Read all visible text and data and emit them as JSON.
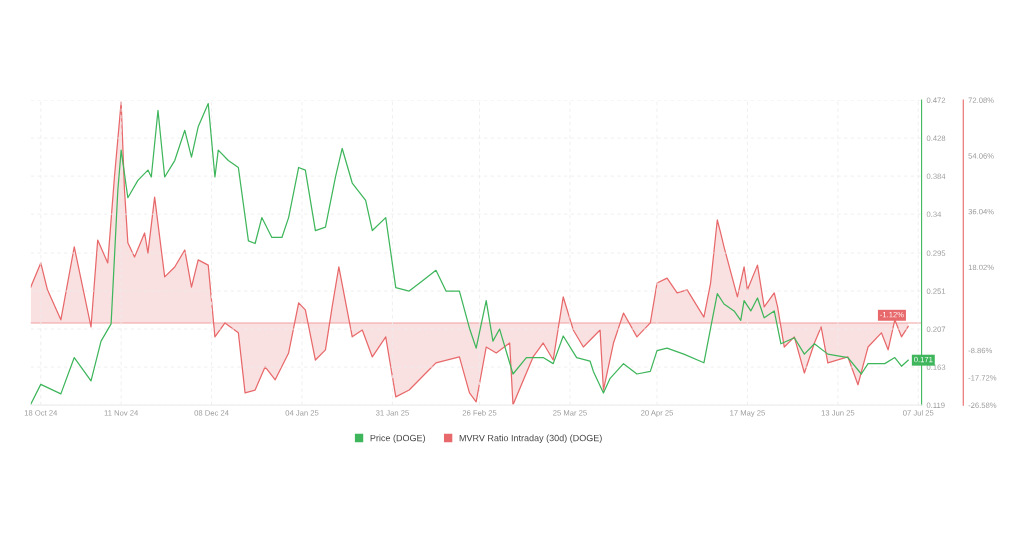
{
  "chart_data": {
    "type": "line",
    "xlim": [
      "2024-10-15",
      "2025-07-08"
    ],
    "xticks": [
      {
        "value": "2024-10-18",
        "label": "18 Oct 24"
      },
      {
        "value": "2024-11-11",
        "label": "11 Nov 24"
      },
      {
        "value": "2024-12-08",
        "label": "08 Dec 24"
      },
      {
        "value": "2025-01-04",
        "label": "04 Jan 25"
      },
      {
        "value": "2025-01-31",
        "label": "31 Jan 25"
      },
      {
        "value": "2025-02-26",
        "label": "26 Feb 25"
      },
      {
        "value": "2025-03-25",
        "label": "25 Mar 25"
      },
      {
        "value": "2025-04-20",
        "label": "20 Apr 25"
      },
      {
        "value": "2025-05-17",
        "label": "17 May 25"
      },
      {
        "value": "2025-06-13",
        "label": "13 Jun 25"
      },
      {
        "value": "2025-07-07",
        "label": "07 Jul 25"
      }
    ],
    "ylim": [
      0.119,
      0.472
    ],
    "yticks": [
      0.119,
      0.163,
      0.207,
      0.251,
      0.295,
      0.34,
      0.384,
      0.428,
      0.472
    ],
    "y2lim": [
      -26.58,
      72.08
    ],
    "y2ticks": [
      {
        "value": -26.58,
        "label": "-26.58%"
      },
      {
        "value": -17.72,
        "label": "-17.72%"
      },
      {
        "value": -8.86,
        "label": "-8.86%"
      },
      {
        "value": 18.02,
        "label": "18.02%"
      },
      {
        "value": 36.04,
        "label": "36.04%"
      },
      {
        "value": 54.06,
        "label": "54.06%"
      },
      {
        "value": 72.08,
        "label": "72.08%"
      }
    ],
    "grid": true,
    "legend": "bottom",
    "ref_lines": [
      {
        "axis": "y2",
        "value": 0,
        "color": "#f2a0a0"
      }
    ],
    "series": [
      {
        "name": "Price (DOGE)",
        "color": "#3fb65c",
        "x": [
          "2024-10-15",
          "2024-10-18",
          "2024-10-24",
          "2024-10-28",
          "2024-11-02",
          "2024-11-05",
          "2024-11-08",
          "2024-11-10",
          "2024-11-11",
          "2024-11-13",
          "2024-11-16",
          "2024-11-19",
          "2024-11-20",
          "2024-11-22",
          "2024-11-24",
          "2024-11-27",
          "2024-11-30",
          "2024-12-02",
          "2024-12-04",
          "2024-12-07",
          "2024-12-09",
          "2024-12-10",
          "2024-12-13",
          "2024-12-16",
          "2024-12-19",
          "2024-12-21",
          "2024-12-23",
          "2024-12-26",
          "2024-12-29",
          "2024-12-31",
          "2025-01-03",
          "2025-01-05",
          "2025-01-08",
          "2025-01-11",
          "2025-01-14",
          "2025-01-16",
          "2025-01-19",
          "2025-01-23",
          "2025-01-25",
          "2025-01-29",
          "2025-02-01",
          "2025-02-05",
          "2025-02-09",
          "2025-02-13",
          "2025-02-16",
          "2025-02-20",
          "2025-02-23",
          "2025-02-25",
          "2025-02-28",
          "2025-03-02",
          "2025-03-04",
          "2025-03-08",
          "2025-03-12",
          "2025-03-17",
          "2025-03-20",
          "2025-03-23",
          "2025-03-27",
          "2025-03-31",
          "2025-04-01",
          "2025-04-04",
          "2025-04-06",
          "2025-04-10",
          "2025-04-14",
          "2025-04-18",
          "2025-04-20",
          "2025-04-23",
          "2025-04-28",
          "2025-05-04",
          "2025-05-06",
          "2025-05-08",
          "2025-05-10",
          "2025-05-13",
          "2025-05-15",
          "2025-05-16",
          "2025-05-18",
          "2025-05-20",
          "2025-05-22",
          "2025-05-25",
          "2025-05-27",
          "2025-05-31",
          "2025-06-03",
          "2025-06-06",
          "2025-06-10",
          "2025-06-16",
          "2025-06-20",
          "2025-06-22",
          "2025-06-27",
          "2025-06-30",
          "2025-07-02",
          "2025-07-04"
        ],
        "values": [
          0.12,
          0.143,
          0.132,
          0.174,
          0.147,
          0.193,
          0.213,
          0.367,
          0.414,
          0.359,
          0.379,
          0.391,
          0.383,
          0.46,
          0.383,
          0.402,
          0.437,
          0.406,
          0.441,
          0.468,
          0.383,
          0.414,
          0.402,
          0.394,
          0.309,
          0.306,
          0.336,
          0.313,
          0.313,
          0.336,
          0.394,
          0.391,
          0.321,
          0.325,
          0.383,
          0.416,
          0.376,
          0.356,
          0.321,
          0.336,
          0.255,
          0.251,
          0.263,
          0.275,
          0.251,
          0.251,
          0.208,
          0.185,
          0.24,
          0.193,
          0.207,
          0.155,
          0.174,
          0.174,
          0.167,
          0.199,
          0.174,
          0.17,
          0.158,
          0.133,
          0.15,
          0.167,
          0.155,
          0.158,
          0.182,
          0.185,
          0.178,
          0.168,
          0.208,
          0.248,
          0.236,
          0.228,
          0.217,
          0.24,
          0.228,
          0.243,
          0.22,
          0.228,
          0.19,
          0.197,
          0.178,
          0.19,
          0.178,
          0.174,
          0.155,
          0.167,
          0.167,
          0.174,
          0.164,
          0.171
        ],
        "value_labels": [
          null,
          null,
          null,
          null,
          null,
          null,
          null,
          null,
          null,
          null,
          null,
          null,
          null,
          null,
          null,
          null,
          null,
          null,
          null,
          null,
          null,
          null,
          null,
          null,
          null,
          null,
          null,
          null,
          null,
          null,
          null,
          null,
          null,
          null,
          null,
          null,
          null,
          null,
          null,
          null,
          null,
          null,
          null,
          null,
          null,
          null,
          null,
          null,
          null,
          null,
          null,
          null,
          null,
          null,
          null,
          null,
          null,
          null,
          null,
          null,
          null,
          null,
          null,
          null,
          null,
          null,
          null,
          null,
          null,
          null,
          null,
          null,
          null,
          null,
          null,
          null,
          null,
          null,
          null,
          null,
          null,
          null,
          null,
          null,
          null,
          null,
          null,
          null,
          null,
          "0.171"
        ]
      },
      {
        "name": "MVRV Ratio Intraday (30d) (DOGE)",
        "type": "area",
        "axis": "y2",
        "color": "#e8696b",
        "x": [
          "2024-10-15",
          "2024-10-18",
          "2024-10-20",
          "2024-10-24",
          "2024-10-28",
          "2024-11-02",
          "2024-11-04",
          "2024-11-07",
          "2024-11-09",
          "2024-11-11",
          "2024-11-12",
          "2024-11-13",
          "2024-11-15",
          "2024-11-18",
          "2024-11-19",
          "2024-11-21",
          "2024-11-24",
          "2024-11-27",
          "2024-11-30",
          "2024-12-02",
          "2024-12-04",
          "2024-12-07",
          "2024-12-09",
          "2024-12-12",
          "2024-12-16",
          "2024-12-18",
          "2024-12-21",
          "2024-12-24",
          "2024-12-27",
          "2024-12-31",
          "2025-01-03",
          "2025-01-05",
          "2025-01-08",
          "2025-01-11",
          "2025-01-13",
          "2025-01-15",
          "2025-01-19",
          "2025-01-22",
          "2025-01-25",
          "2025-01-29",
          "2025-02-01",
          "2025-02-05",
          "2025-02-10",
          "2025-02-13",
          "2025-02-20",
          "2025-02-23",
          "2025-02-25",
          "2025-02-28",
          "2025-03-03",
          "2025-03-07",
          "2025-03-08",
          "2025-03-14",
          "2025-03-17",
          "2025-03-20",
          "2025-03-23",
          "2025-03-26",
          "2025-03-29",
          "2025-04-03",
          "2025-04-04",
          "2025-04-07",
          "2025-04-10",
          "2025-04-14",
          "2025-04-18",
          "2025-04-20",
          "2025-04-23",
          "2025-04-26",
          "2025-04-29",
          "2025-05-04",
          "2025-05-06",
          "2025-05-08",
          "2025-05-09",
          "2025-05-10",
          "2025-05-14",
          "2025-05-16",
          "2025-05-17",
          "2025-05-20",
          "2025-05-22",
          "2025-05-25",
          "2025-05-26",
          "2025-05-28",
          "2025-05-31",
          "2025-06-03",
          "2025-06-06",
          "2025-06-08",
          "2025-06-10",
          "2025-06-16",
          "2025-06-19",
          "2025-06-22",
          "2025-06-26",
          "2025-06-28",
          "2025-06-30",
          "2025-07-02",
          "2025-07-04"
        ],
        "values": [
          11.6,
          19.4,
          10.7,
          1.0,
          24.6,
          -1.3,
          26.8,
          19.4,
          47.2,
          71.4,
          43.0,
          25.9,
          21.3,
          29.1,
          22.6,
          40.7,
          14.9,
          18.1,
          23.6,
          11.6,
          20.4,
          18.7,
          -4.5,
          0,
          -3.2,
          -22.6,
          -21.7,
          -14.2,
          -18.4,
          -9.7,
          6.5,
          4.2,
          -12.0,
          -8.7,
          5.2,
          18.1,
          -4.5,
          -2.3,
          -11.0,
          -4.5,
          -23.9,
          -21.7,
          -16.2,
          -12.9,
          -11.0,
          -22.6,
          -25.5,
          -7.8,
          -9.7,
          -6.5,
          -26.5,
          -11.0,
          -6.5,
          -12.0,
          8.4,
          -2.3,
          -7.8,
          -2.3,
          -21.7,
          -6.5,
          3.2,
          -4.5,
          0,
          12.9,
          14.5,
          9.7,
          10.7,
          1.9,
          12.9,
          33.3,
          29.1,
          24.6,
          8.4,
          18.1,
          10.7,
          18.7,
          5.2,
          9.7,
          5.2,
          -7.8,
          -4.5,
          -16.2,
          -6.5,
          -1.3,
          -12.9,
          -11.0,
          -20.0,
          -7.8,
          -3.2,
          -8.7,
          1.0,
          -4.5,
          -1.12
        ],
        "value_labels": [
          null,
          null,
          null,
          null,
          null,
          null,
          null,
          null,
          null,
          null,
          null,
          null,
          null,
          null,
          null,
          null,
          null,
          null,
          null,
          null,
          null,
          null,
          null,
          null,
          null,
          null,
          null,
          null,
          null,
          null,
          null,
          null,
          null,
          null,
          null,
          null,
          null,
          null,
          null,
          null,
          null,
          null,
          null,
          null,
          null,
          null,
          null,
          null,
          null,
          null,
          null,
          null,
          null,
          null,
          null,
          null,
          null,
          null,
          null,
          null,
          null,
          null,
          null,
          null,
          null,
          null,
          null,
          null,
          null,
          null,
          null,
          null,
          null,
          null,
          null,
          null,
          null,
          null,
          null,
          null,
          null,
          null,
          null,
          null,
          null,
          null,
          null,
          null,
          null,
          null,
          null,
          null,
          "-1.12%"
        ]
      }
    ]
  }
}
